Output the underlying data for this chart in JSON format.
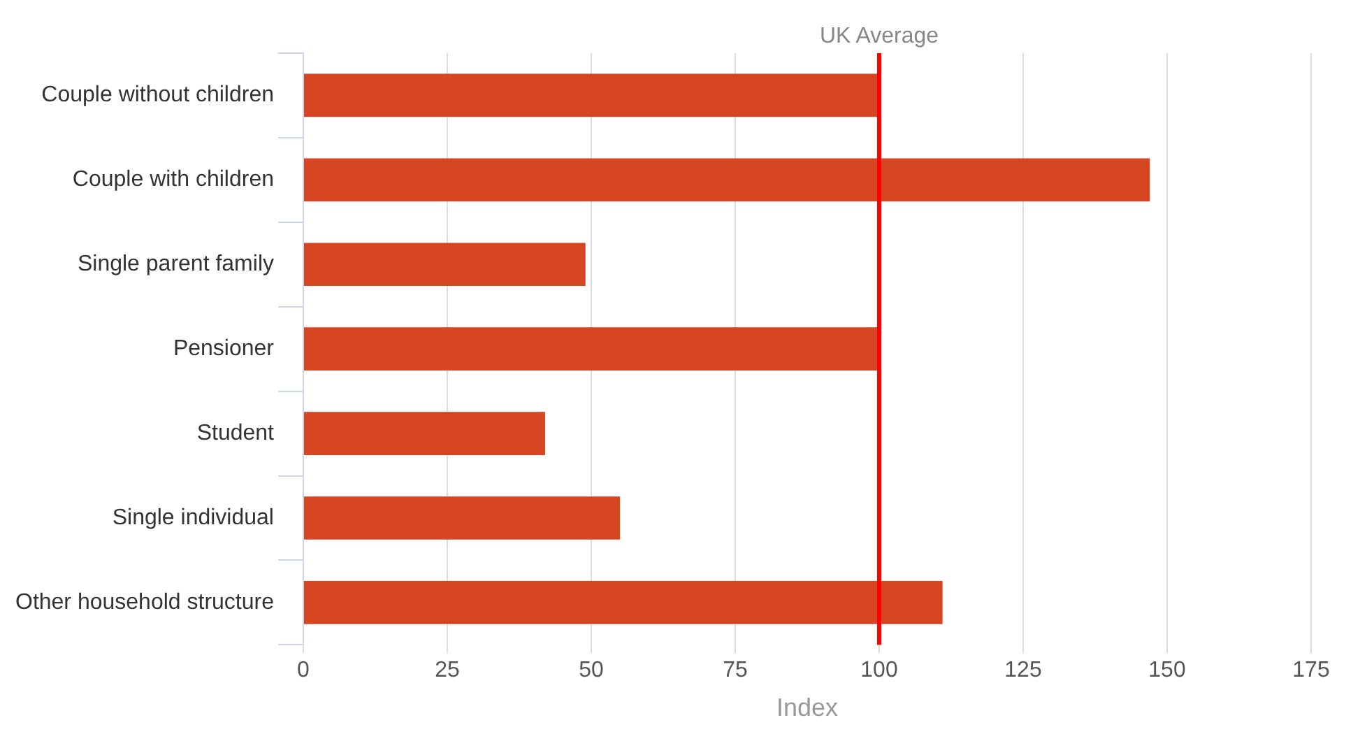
{
  "chart_data": {
    "type": "bar",
    "orientation": "horizontal",
    "xlabel": "Index",
    "categories": [
      "Couple without children",
      "Couple with children",
      "Single parent family",
      "Pensioner",
      "Student",
      "Single individual",
      "Other household structure"
    ],
    "values": [
      100,
      147,
      49,
      100,
      42,
      55,
      111
    ],
    "color": "#d54522",
    "xlim": [
      0,
      175
    ],
    "xticks": [
      0,
      25,
      50,
      75,
      100,
      125,
      150,
      175
    ],
    "grid": "x",
    "ref_lines": [
      {
        "axis": "x",
        "value": 100,
        "label": "UK Average",
        "color": "#ff0000"
      }
    ]
  }
}
